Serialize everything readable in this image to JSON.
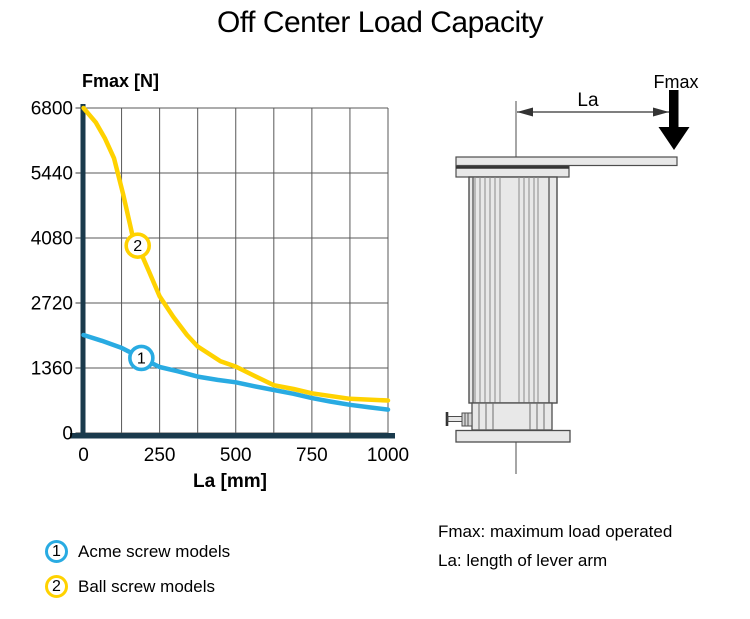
{
  "title": "Off Center Load Capacity",
  "chart_data": {
    "type": "line",
    "title": "Off Center Load Capacity",
    "xlabel": "La [mm]",
    "ylabel": "Fmax [N]",
    "xlim": [
      0,
      1000
    ],
    "ylim": [
      0,
      6800
    ],
    "x_ticks": [
      0,
      250,
      500,
      750,
      1000
    ],
    "y_ticks": [
      0,
      1360,
      2720,
      4080,
      5440,
      6800
    ],
    "x_grid_step": 125,
    "y_grid_step": 1360,
    "grid": "on",
    "legend_position": "below-left",
    "series": [
      {
        "id": "1",
        "name": "Acme screw models",
        "color": "#29ABE2",
        "marker_at": [
          190,
          1570
        ],
        "points": [
          [
            0,
            2050
          ],
          [
            60,
            1930
          ],
          [
            125,
            1780
          ],
          [
            190,
            1570
          ],
          [
            250,
            1380
          ],
          [
            310,
            1290
          ],
          [
            375,
            1180
          ],
          [
            440,
            1110
          ],
          [
            500,
            1060
          ],
          [
            560,
            980
          ],
          [
            625,
            900
          ],
          [
            690,
            820
          ],
          [
            750,
            730
          ],
          [
            810,
            660
          ],
          [
            875,
            590
          ],
          [
            940,
            535
          ],
          [
            1000,
            490
          ]
        ]
      },
      {
        "id": "2",
        "name": "Ball screw models",
        "color": "#FFD200",
        "marker_at": [
          178,
          3920
        ],
        "points": [
          [
            0,
            6800
          ],
          [
            40,
            6500
          ],
          [
            70,
            6170
          ],
          [
            100,
            5750
          ],
          [
            130,
            5000
          ],
          [
            160,
            4160
          ],
          [
            178,
            3920
          ],
          [
            215,
            3380
          ],
          [
            250,
            2860
          ],
          [
            295,
            2430
          ],
          [
            340,
            2050
          ],
          [
            375,
            1810
          ],
          [
            450,
            1500
          ],
          [
            500,
            1390
          ],
          [
            560,
            1200
          ],
          [
            625,
            1000
          ],
          [
            690,
            920
          ],
          [
            750,
            830
          ],
          [
            875,
            715
          ],
          [
            1000,
            680
          ]
        ]
      }
    ]
  },
  "legend": {
    "items": [
      {
        "num": "1",
        "label": "Acme screw models",
        "color": "#29ABE2"
      },
      {
        "num": "2",
        "label": "Ball screw models",
        "color": "#FFD200"
      }
    ]
  },
  "diagram": {
    "la_label": "La",
    "fmax_label": "Fmax"
  },
  "notes": {
    "line1": "Fmax: maximum load operated",
    "line2": "La: length of lever arm"
  },
  "colors": {
    "axis": "#1A3A4C",
    "grid": "#595959",
    "acme_blue": "#29ABE2",
    "ball_yellow": "#FFD200",
    "text": "#000000",
    "diagram_fill": "#E8E8E8",
    "diagram_stroke": "#4D4D4D"
  }
}
